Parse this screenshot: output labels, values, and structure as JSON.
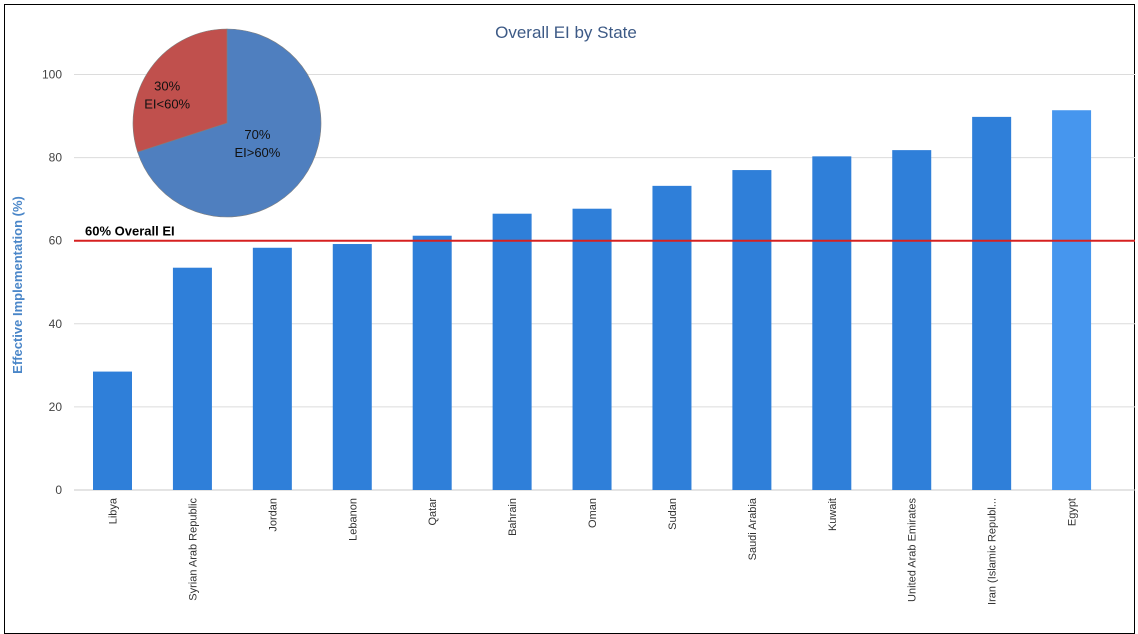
{
  "chart_data": [
    {
      "type": "bar",
      "title": "Overall EI by State",
      "ylabel": "Effective Implementation (%)",
      "xlabel": "",
      "ylim": [
        0,
        110
      ],
      "yticks": [
        0,
        20,
        40,
        60,
        80,
        100
      ],
      "grid": true,
      "categories": [
        "Libya",
        "Syrian Arab Republic",
        "Jordan",
        "Lebanon",
        "Qatar",
        "Bahrain",
        "Oman",
        "Sudan",
        "Saudi Arabia",
        "Kuwait",
        "United Arab Emirates",
        "Iran (Islamic Republ...",
        "Egypt"
      ],
      "values": [
        28.5,
        53.5,
        58.3,
        59.2,
        61.2,
        66.5,
        67.7,
        73.2,
        77.0,
        80.3,
        81.8,
        89.8,
        91.4
      ],
      "reference_line": {
        "value": 60,
        "label": "60% Overall EI",
        "color": "#d62020"
      },
      "colors": {
        "bar": "#2f7fd9",
        "highlight_bar": "#4696ee",
        "title": "#3d5a86",
        "ylabel": "#4a86c8"
      }
    },
    {
      "type": "pie",
      "slices": [
        {
          "value": 70,
          "label": "70%",
          "sublabel": "EI>60%",
          "color": "#4f7fbf"
        },
        {
          "value": 30,
          "label": "30%",
          "sublabel": "EI<60%",
          "color": "#c0504d"
        }
      ]
    }
  ]
}
